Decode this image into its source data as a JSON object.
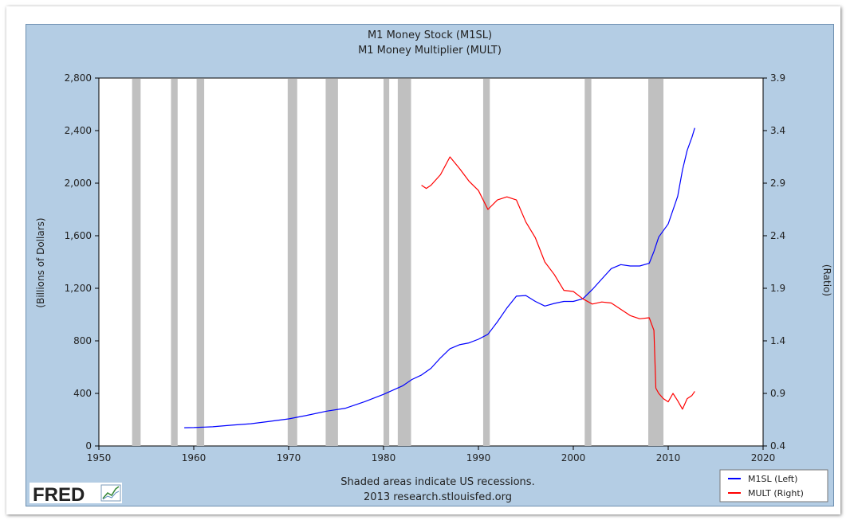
{
  "chart_data": {
    "type": "line",
    "title": "M1 Money Stock (M1SL)",
    "subtitle": "M1 Money Multiplier (MULT)",
    "ylabel_left": "(Billions of Dollars)",
    "ylabel_right": "(Ratio)",
    "xlim": [
      1950,
      2020
    ],
    "ylim_left": [
      0,
      2800
    ],
    "ylim_right": [
      0.4,
      3.9
    ],
    "x_ticks": [
      "1950",
      "1960",
      "1970",
      "1980",
      "1990",
      "2000",
      "2010",
      "2020"
    ],
    "y_ticks_left": [
      "0",
      "400",
      "800",
      "1,200",
      "1,600",
      "2,000",
      "2,400",
      "2,800"
    ],
    "y_ticks_right": [
      "0.4",
      "0.9",
      "1.4",
      "1.9",
      "2.4",
      "2.9",
      "3.4",
      "3.9"
    ],
    "grid": false,
    "legend_position": "bottom-right",
    "recessions": [
      [
        1953.5,
        1954.4
      ],
      [
        1957.6,
        1958.3
      ],
      [
        1960.3,
        1961.1
      ],
      [
        1969.9,
        1970.9
      ],
      [
        1973.9,
        1975.2
      ],
      [
        1980.0,
        1980.6
      ],
      [
        1981.5,
        1982.9
      ],
      [
        1990.5,
        1991.2
      ],
      [
        2001.2,
        2001.9
      ],
      [
        2007.9,
        2009.5
      ]
    ],
    "series": [
      {
        "name": "M1SL (Left)",
        "axis": "left",
        "color": "#0000ff",
        "points": [
          [
            1959.0,
            139
          ],
          [
            1960.0,
            140
          ],
          [
            1962.0,
            146
          ],
          [
            1964.0,
            158
          ],
          [
            1966.0,
            169
          ],
          [
            1968.0,
            187
          ],
          [
            1970.0,
            206
          ],
          [
            1972.0,
            234
          ],
          [
            1974.0,
            265
          ],
          [
            1976.0,
            287
          ],
          [
            1978.0,
            337
          ],
          [
            1980.0,
            393
          ],
          [
            1982.0,
            457
          ],
          [
            1983.0,
            506
          ],
          [
            1984.0,
            540
          ],
          [
            1985.0,
            591
          ],
          [
            1986.0,
            670
          ],
          [
            1987.0,
            740
          ],
          [
            1988.0,
            770
          ],
          [
            1989.0,
            784
          ],
          [
            1990.0,
            812
          ],
          [
            1991.0,
            850
          ],
          [
            1992.0,
            945
          ],
          [
            1993.0,
            1050
          ],
          [
            1994.0,
            1140
          ],
          [
            1995.0,
            1145
          ],
          [
            1996.0,
            1100
          ],
          [
            1997.0,
            1065
          ],
          [
            1998.0,
            1085
          ],
          [
            1999.0,
            1100
          ],
          [
            2000.0,
            1100
          ],
          [
            2001.0,
            1120
          ],
          [
            2002.0,
            1190
          ],
          [
            2003.0,
            1270
          ],
          [
            2004.0,
            1350
          ],
          [
            2005.0,
            1380
          ],
          [
            2006.0,
            1370
          ],
          [
            2007.0,
            1370
          ],
          [
            2008.0,
            1390
          ],
          [
            2008.5,
            1480
          ],
          [
            2009.0,
            1590
          ],
          [
            2010.0,
            1690
          ],
          [
            2011.0,
            1900
          ],
          [
            2011.5,
            2100
          ],
          [
            2012.0,
            2250
          ],
          [
            2012.5,
            2350
          ],
          [
            2012.8,
            2420
          ]
        ]
      },
      {
        "name": "MULT (Right)",
        "axis": "right",
        "color": "#ff0000",
        "points": [
          [
            1984.0,
            2.88
          ],
          [
            1984.5,
            2.85
          ],
          [
            1985.0,
            2.88
          ],
          [
            1986.0,
            2.98
          ],
          [
            1987.0,
            3.15
          ],
          [
            1988.0,
            3.04
          ],
          [
            1989.0,
            2.92
          ],
          [
            1990.0,
            2.83
          ],
          [
            1991.0,
            2.65
          ],
          [
            1992.0,
            2.74
          ],
          [
            1993.0,
            2.77
          ],
          [
            1994.0,
            2.74
          ],
          [
            1995.0,
            2.53
          ],
          [
            1996.0,
            2.38
          ],
          [
            1997.0,
            2.15
          ],
          [
            1998.0,
            2.03
          ],
          [
            1999.0,
            1.88
          ],
          [
            2000.0,
            1.87
          ],
          [
            2001.0,
            1.8
          ],
          [
            2002.0,
            1.75
          ],
          [
            2003.0,
            1.77
          ],
          [
            2004.0,
            1.76
          ],
          [
            2005.0,
            1.7
          ],
          [
            2006.0,
            1.64
          ],
          [
            2007.0,
            1.61
          ],
          [
            2008.0,
            1.62
          ],
          [
            2008.5,
            1.5
          ],
          [
            2008.7,
            0.95
          ],
          [
            2009.0,
            0.9
          ],
          [
            2009.5,
            0.85
          ],
          [
            2010.0,
            0.82
          ],
          [
            2010.5,
            0.9
          ],
          [
            2011.0,
            0.83
          ],
          [
            2011.5,
            0.75
          ],
          [
            2012.0,
            0.85
          ],
          [
            2012.5,
            0.88
          ],
          [
            2012.8,
            0.92
          ]
        ]
      }
    ],
    "footnote": "Shaded areas indicate US recessions.",
    "source": "2013 research.stlouisfed.org",
    "logo": "FRED",
    "recession_color": "#c0c0c0",
    "background_color": "#b4cde4"
  }
}
